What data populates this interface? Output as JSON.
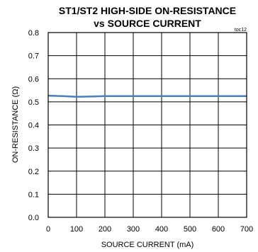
{
  "chart_data": {
    "type": "line",
    "title_lines": [
      "ST1/ST2 HIGH-SIDE ON-RESISTANCE",
      "vs SOURCE CURRENT"
    ],
    "tag": "toc12",
    "xlabel": "SOURCE CURRENT (mA)",
    "ylabel": "ON-RESISTANCE (Ω)",
    "xlim": [
      0,
      700
    ],
    "ylim": [
      0,
      0.8
    ],
    "x_ticks": [
      "0",
      "100",
      "200",
      "300",
      "400",
      "500",
      "600",
      "700"
    ],
    "y_ticks": [
      "0.0",
      "0.1",
      "0.2",
      "0.3",
      "0.4",
      "0.5",
      "0.6",
      "0.7",
      "0.8"
    ],
    "grid": true,
    "series": [
      {
        "color": "#4a7ebf",
        "x": [
          0,
          50,
          100,
          150,
          200,
          300,
          400,
          500,
          600,
          700
        ],
        "y": [
          0.527,
          0.525,
          0.522,
          0.523,
          0.525,
          0.525,
          0.525,
          0.525,
          0.525,
          0.525
        ]
      }
    ]
  }
}
